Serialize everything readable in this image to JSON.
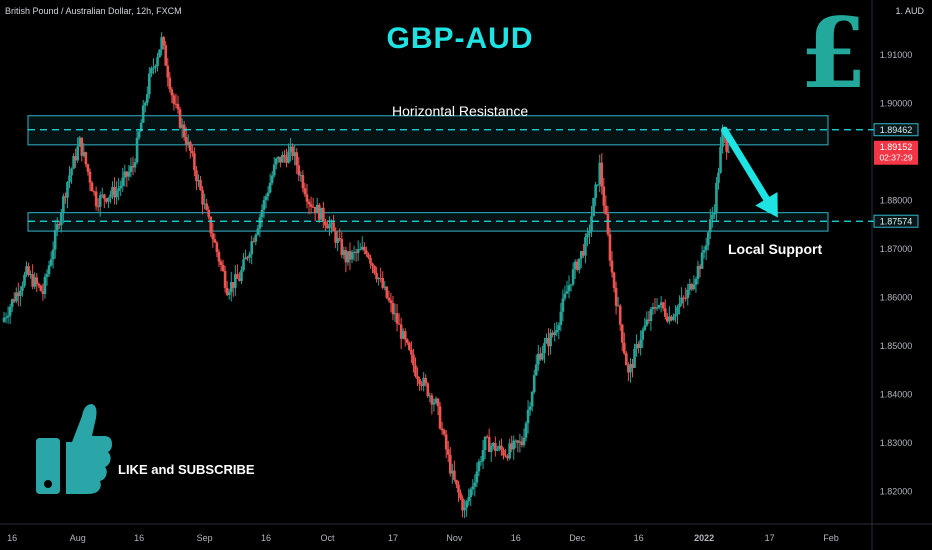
{
  "header": {
    "symbol": "British Pound / Australian Dollar, 12h, FXCM",
    "currency": "1. AUD",
    "title": "GBP-AUD",
    "currency_symbol": "£"
  },
  "annotations": {
    "resistance": "Horizontal Resistance",
    "support": "Local Support",
    "cta": "LIKE and SUBSCRIBE"
  },
  "price_labels": {
    "resistance": "1.89462",
    "last_price": "1.89152",
    "countdown": "02:37:29",
    "support": "1.87574"
  },
  "colors": {
    "bull": "#26a69a",
    "bear": "#ef5350",
    "accent": "#1fe3e3",
    "zone": "#31b6c7",
    "last_price_bg": "#f23645"
  },
  "chart_data": {
    "type": "candlestick",
    "ylim": [
      1.8145,
      1.9185
    ],
    "y_ticks": [
      1.82,
      1.83,
      1.84,
      1.85,
      1.86,
      1.87,
      1.88,
      1.89,
      1.9,
      1.91
    ],
    "y_tick_labels": [
      "1.82000",
      "1.83000",
      "1.84000",
      "1.85000",
      "1.86000",
      "1.87000",
      "1.88000",
      "1.89000",
      "1.90000",
      "1.91000"
    ],
    "x_ticks": [
      "16",
      "Aug",
      "16",
      "Sep",
      "16",
      "Oct",
      "17",
      "Nov",
      "16",
      "Dec",
      "16",
      "2022",
      "17",
      "Feb"
    ],
    "x_tick_bold": [
      false,
      false,
      false,
      false,
      false,
      false,
      false,
      false,
      false,
      false,
      false,
      true,
      false,
      false
    ],
    "resistance_zone": [
      1.8915,
      1.8975
    ],
    "resistance_level": 1.89462,
    "support_zone": [
      1.8737,
      1.8775
    ],
    "support_level": 1.87574,
    "last_price": 1.89152,
    "projection": {
      "from": "2022-01-06",
      "from_price": 1.8945,
      "to": "2022-01-19",
      "to_price": 1.8765
    },
    "price_path": [
      [
        "2021-07-14",
        1.855
      ],
      [
        "2021-07-20",
        1.865
      ],
      [
        "2021-07-24",
        1.861
      ],
      [
        "2021-07-30",
        1.884
      ],
      [
        "2021-08-02",
        1.892
      ],
      [
        "2021-08-06",
        1.88
      ],
      [
        "2021-08-11",
        1.882
      ],
      [
        "2021-08-15",
        1.887
      ],
      [
        "2021-08-19",
        1.905
      ],
      [
        "2021-08-22",
        1.913
      ],
      [
        "2021-08-25",
        1.9
      ],
      [
        "2021-08-29",
        1.89
      ],
      [
        "2021-09-02",
        1.877
      ],
      [
        "2021-09-07",
        1.862
      ],
      [
        "2021-09-10",
        1.864
      ],
      [
        "2021-09-14",
        1.874
      ],
      [
        "2021-09-19",
        1.888
      ],
      [
        "2021-09-23",
        1.89
      ],
      [
        "2021-09-27",
        1.88
      ],
      [
        "2021-10-02",
        1.875
      ],
      [
        "2021-10-06",
        1.868
      ],
      [
        "2021-10-11",
        1.87
      ],
      [
        "2021-10-18",
        1.856
      ],
      [
        "2021-10-23",
        1.845
      ],
      [
        "2021-10-28",
        1.838
      ],
      [
        "2021-11-01",
        1.823
      ],
      [
        "2021-11-04",
        1.816
      ],
      [
        "2021-11-09",
        1.83
      ],
      [
        "2021-11-14",
        1.828
      ],
      [
        "2021-11-18",
        1.83
      ],
      [
        "2021-11-22",
        1.848
      ],
      [
        "2021-11-26",
        1.853
      ],
      [
        "2021-11-30",
        1.864
      ],
      [
        "2021-12-04",
        1.872
      ],
      [
        "2021-12-07",
        1.887
      ],
      [
        "2021-12-10",
        1.865
      ],
      [
        "2021-12-14",
        1.844
      ],
      [
        "2021-12-17",
        1.852
      ],
      [
        "2021-12-21",
        1.859
      ],
      [
        "2021-12-24",
        1.856
      ],
      [
        "2021-12-28",
        1.86
      ],
      [
        "2022-01-01",
        1.868
      ],
      [
        "2022-01-04",
        1.879
      ],
      [
        "2022-01-06",
        1.894
      ],
      [
        "2022-01-07",
        1.8915
      ]
    ]
  }
}
